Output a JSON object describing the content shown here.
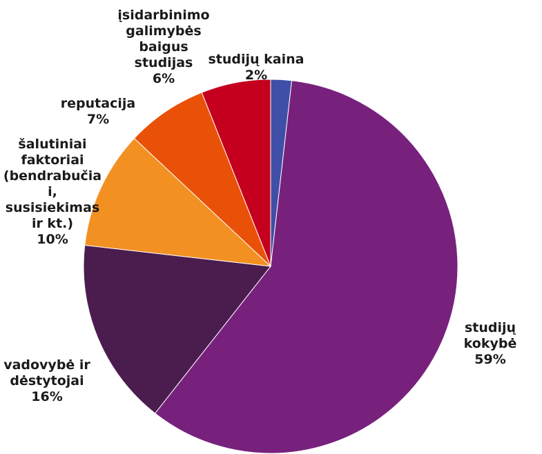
{
  "chart_data": {
    "type": "pie",
    "slices": [
      {
        "label": "studijų kaina",
        "lines": [
          "studijų kaina"
        ],
        "percent": "2%",
        "value": 1.8,
        "color": "#3f4fa8"
      },
      {
        "label": "studijų kokybė",
        "lines": [
          "studijų",
          "kokybė"
        ],
        "percent": "59%",
        "value": 58.8,
        "color": "#77217d"
      },
      {
        "label": "vadovybė ir dėstytojai",
        "lines": [
          "vadovybė ir",
          "dėstytojai"
        ],
        "percent": "16%",
        "value": 16.2,
        "color": "#4b1d4f"
      },
      {
        "label": "šalutiniai faktoriai (bendrabučiai, susisiekimas ir kt.)",
        "lines": [
          "šalutiniai",
          "faktoriai",
          "(bendrabučia",
          "i,",
          "susisiekimas",
          "ir kt.)"
        ],
        "percent": "10%",
        "value": 10.2,
        "color": "#f39022"
      },
      {
        "label": "reputacija",
        "lines": [
          "reputacija"
        ],
        "percent": "7%",
        "value": 7.0,
        "color": "#ea5108"
      },
      {
        "label": "įsidarbinimo galimybės baigus studijas",
        "lines": [
          "įsidarbinimo",
          "galimybės",
          "baigus",
          "studijas"
        ],
        "percent": "6%",
        "value": 6.0,
        "color": "#c4001e"
      }
    ],
    "legend": "none"
  }
}
